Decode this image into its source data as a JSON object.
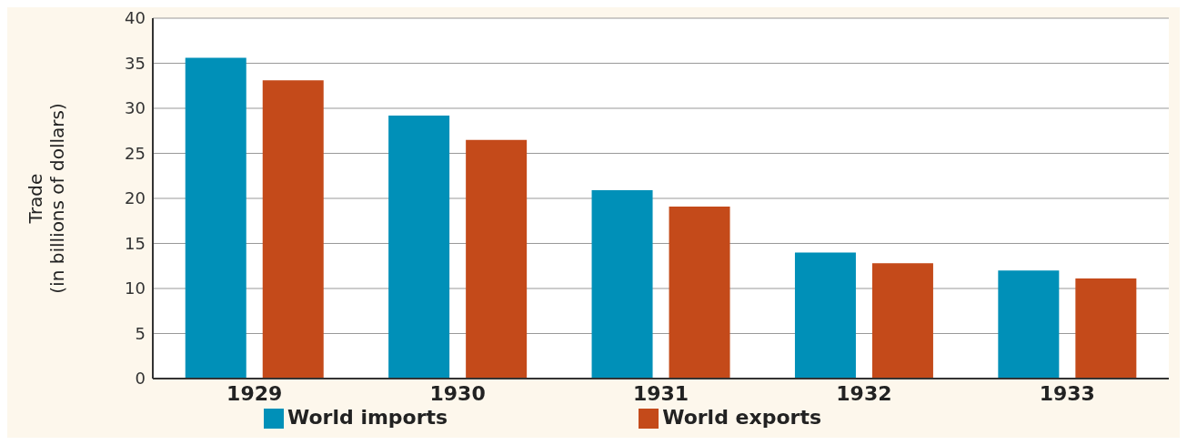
{
  "chart_data": {
    "type": "bar",
    "ylabel": "Trade\n(in billions of dollars)",
    "categories": [
      "1929",
      "1930",
      "1931",
      "1932",
      "1933"
    ],
    "series": [
      {
        "name": "World imports",
        "color": "#0090b8",
        "values": [
          35.6,
          29.2,
          20.9,
          14.0,
          12.0
        ]
      },
      {
        "name": "World exports",
        "color": "#c44a1a",
        "values": [
          33.1,
          26.5,
          19.1,
          12.8,
          11.1
        ]
      }
    ],
    "ylim": [
      0,
      40
    ],
    "yticks": [
      0,
      5,
      10,
      15,
      20,
      25,
      30,
      35,
      40
    ],
    "grid": "y",
    "legend": "bottom"
  }
}
